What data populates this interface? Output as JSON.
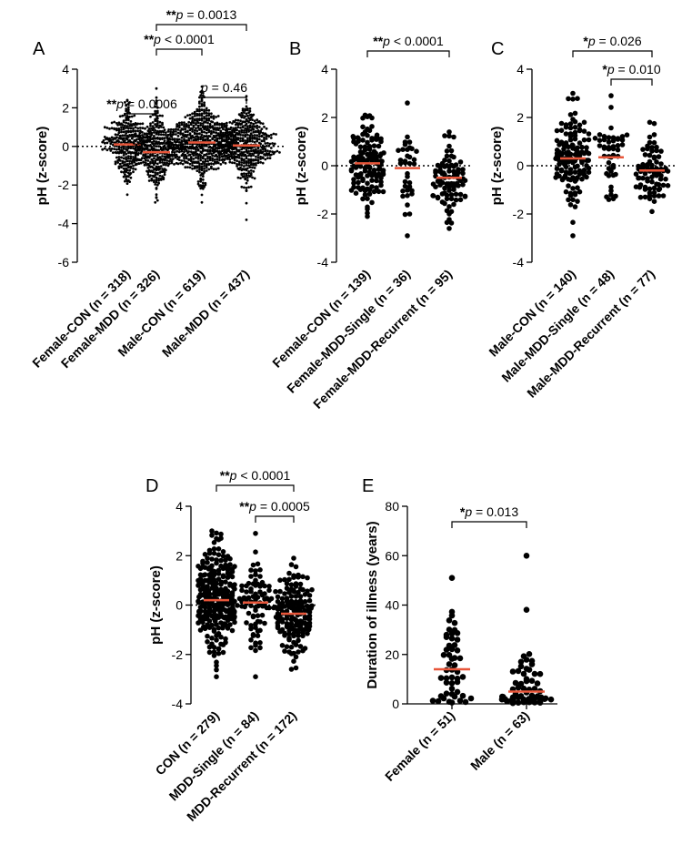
{
  "colors": {
    "dot": "#000000",
    "median": "#e8563a",
    "axis": "#000000"
  },
  "chart_data": [
    {
      "panel": "A",
      "type": "scatter",
      "ylabel": "pH (z-score)",
      "ylim": [
        -6,
        4
      ],
      "yticks": [
        4,
        2,
        0,
        -2,
        -4,
        -6
      ],
      "ytick_labels": [
        "4",
        "2",
        "0",
        "-2",
        "-4",
        "-6"
      ],
      "zero_line": true,
      "categories": [
        "Female-CON (n = 318)",
        "Female-MDD (n = 326)",
        "Male-CON (n = 619)",
        "Male-MDD (n = 437)"
      ],
      "series": [
        {
          "name": "Female-CON",
          "n": 318,
          "median": 0.1,
          "min": -2.5,
          "max": 2.4,
          "sd": 0.9
        },
        {
          "name": "Female-MDD",
          "n": 326,
          "median": -0.3,
          "min": -2.9,
          "max": 3.0,
          "sd": 0.95
        },
        {
          "name": "Male-CON",
          "n": 619,
          "median": 0.2,
          "min": -2.9,
          "max": 3.1,
          "sd": 0.9
        },
        {
          "name": "Male-MDD",
          "n": 437,
          "median": 0.05,
          "min": -3.8,
          "max": 2.6,
          "sd": 0.9
        }
      ],
      "comparisons": [
        {
          "from": 0,
          "to": 1,
          "stars": "**",
          "label": "p = 0.0006"
        },
        {
          "from": 2,
          "to": 3,
          "stars": "",
          "label": "p = 0.46"
        },
        {
          "from": 1,
          "to": 2,
          "stars": "**",
          "label": "p < 0.0001"
        },
        {
          "from": 1,
          "to": 3,
          "stars": "**",
          "label": "p = 0.0013"
        }
      ]
    },
    {
      "panel": "B",
      "type": "scatter",
      "ylabel": "pH (z-score)",
      "ylim": [
        -4,
        4
      ],
      "yticks": [
        4,
        2,
        0,
        -2,
        -4
      ],
      "ytick_labels": [
        "4",
        "2",
        "0",
        "-2",
        "-4"
      ],
      "zero_line": true,
      "categories": [
        "Female-CON (n = 139)",
        "Female-MDD-Single (n = 36)",
        "Female-MDD-Recurrent (n = 95)"
      ],
      "series": [
        {
          "name": "Female-CON",
          "n": 139,
          "median": 0.1,
          "min": -2.1,
          "max": 2.1,
          "sd": 0.9
        },
        {
          "name": "Female-MDD-Single",
          "n": 36,
          "median": -0.1,
          "min": -2.9,
          "max": 2.6,
          "sd": 1.2
        },
        {
          "name": "Female-MDD-Recurrent",
          "n": 95,
          "median": -0.5,
          "min": -2.6,
          "max": 1.4,
          "sd": 0.8
        }
      ],
      "comparisons": [
        {
          "from": 0,
          "to": 2,
          "stars": "**",
          "label": "p < 0.0001"
        }
      ]
    },
    {
      "panel": "C",
      "type": "scatter",
      "ylabel": "pH (z-score)",
      "ylim": [
        -4,
        4
      ],
      "yticks": [
        4,
        2,
        0,
        -2,
        -4
      ],
      "ytick_labels": [
        "4",
        "2",
        "0",
        "-2",
        "-4"
      ],
      "zero_line": true,
      "categories": [
        "Male-CON (n = 140)",
        "Male-MDD-Single (n = 48)",
        "Male-MDD-Recurrent (n = 77)"
      ],
      "series": [
        {
          "name": "Male-CON",
          "n": 140,
          "median": 0.3,
          "min": -2.9,
          "max": 3.0,
          "sd": 1.0
        },
        {
          "name": "Male-MDD-Single",
          "n": 48,
          "median": 0.35,
          "min": -1.4,
          "max": 2.9,
          "sd": 0.9
        },
        {
          "name": "Male-MDD-Recurrent",
          "n": 77,
          "median": -0.2,
          "min": -1.9,
          "max": 1.8,
          "sd": 0.8
        }
      ],
      "comparisons": [
        {
          "from": 0,
          "to": 2,
          "stars": "*",
          "label": "p = 0.026"
        },
        {
          "from": 1,
          "to": 2,
          "stars": "*",
          "label": "p = 0.010"
        }
      ]
    },
    {
      "panel": "D",
      "type": "scatter",
      "ylabel": "pH (z-score)",
      "ylim": [
        -4,
        4
      ],
      "yticks": [
        4,
        2,
        0,
        -2,
        -4
      ],
      "ytick_labels": [
        "4",
        "2",
        "0",
        "-2",
        "-4"
      ],
      "zero_line": true,
      "categories": [
        "CON (n = 279)",
        "MDD-Single (n = 84)",
        "MDD-Recurrent (n = 172)"
      ],
      "series": [
        {
          "name": "CON",
          "n": 279,
          "median": 0.2,
          "min": -2.9,
          "max": 3.0,
          "sd": 1.0
        },
        {
          "name": "MDD-Single",
          "n": 84,
          "median": 0.1,
          "min": -2.9,
          "max": 2.9,
          "sd": 1.0
        },
        {
          "name": "MDD-Recurrent",
          "n": 172,
          "median": -0.35,
          "min": -2.6,
          "max": 1.9,
          "sd": 0.8
        }
      ],
      "comparisons": [
        {
          "from": 0,
          "to": 2,
          "stars": "**",
          "label": "p < 0.0001"
        },
        {
          "from": 1,
          "to": 2,
          "stars": "**",
          "label": "p = 0.0005"
        }
      ]
    },
    {
      "panel": "E",
      "type": "scatter",
      "ylabel": "Duration of illness (years)",
      "ylim": [
        0,
        80
      ],
      "yticks": [
        80,
        60,
        40,
        20,
        0
      ],
      "ytick_labels": [
        "80",
        "60",
        "40",
        "20",
        "0"
      ],
      "zero_line": false,
      "categories": [
        "Female (n = 51)",
        "Male (n = 63)"
      ],
      "series": [
        {
          "name": "Female",
          "n": 51,
          "median": 14,
          "min": 0.5,
          "max": 51,
          "sd": 11
        },
        {
          "name": "Male",
          "n": 63,
          "median": 5,
          "min": 0.3,
          "max": 60,
          "sd": 10
        }
      ],
      "comparisons": [
        {
          "from": 0,
          "to": 1,
          "stars": "*",
          "label": "p = 0.013"
        }
      ]
    }
  ]
}
